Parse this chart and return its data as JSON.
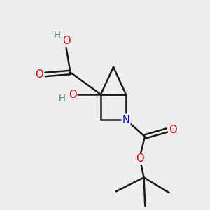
{
  "bg_color": "#eeeeee",
  "bond_color": "#1a1a1a",
  "bond_width": 1.8,
  "atom_colors": {
    "O": "#dd0000",
    "N": "#0000cc",
    "H_gray": "#4a7a7a",
    "C": "#1a1a1a"
  },
  "font_size_atom": 10.5,
  "font_size_H": 9.5
}
